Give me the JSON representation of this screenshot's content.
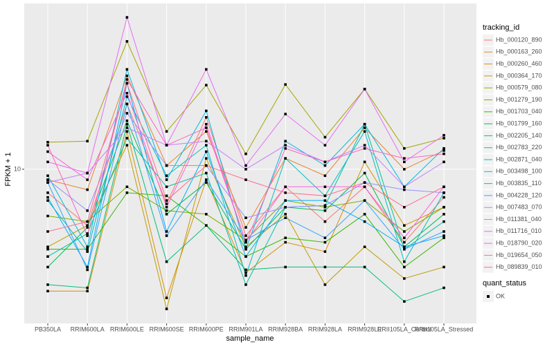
{
  "chart_data": {
    "type": "line",
    "x_label": "sample_name",
    "y_label": "FPKM + 1",
    "categories": [
      "PB350LA",
      "RRIM600LA",
      "RRIM600LE",
      "RRIM600SE",
      "RRIM600PE",
      "RRIM901LA",
      "RRIM928BA",
      "RRIM928LA",
      "RRIM928LE",
      "RRII105LA_Control",
      "RRII105LA_Stressed"
    ],
    "ylim": [
      2.94,
      37.3
    ],
    "yticks": [
      10
    ],
    "log_y": true,
    "grid": true,
    "legend_title": "tracking_id",
    "point_legend": {
      "title": "quant_status",
      "labels": [
        "OK"
      ],
      "color": "#000000"
    },
    "series": [
      {
        "name": "Hb_000120_890",
        "color": "#F8766D",
        "values": [
          8.3,
          6.4,
          16.8,
          7.6,
          15.1,
          5.9,
          8.7,
          6.6,
          8.7,
          5.6,
          8.0
        ]
      },
      {
        "name": "Hb_000163_260",
        "color": "#EA8331",
        "values": [
          9.2,
          8.5,
          21.0,
          10.3,
          13.5,
          6.3,
          10.9,
          9.5,
          13.9,
          10.0,
          11.6
        ]
      },
      {
        "name": "Hb_000260_460",
        "color": "#D89000",
        "values": [
          3.8,
          3.8,
          13.5,
          3.6,
          9.2,
          4.4,
          5.6,
          5.2,
          10.6,
          6.4,
          7.4
        ]
      },
      {
        "name": "Hb_000364_170",
        "color": "#C09B00",
        "values": [
          5.4,
          6.4,
          12.1,
          3.3,
          10.9,
          5.4,
          7.0,
          4.0,
          5.4,
          4.2,
          4.6
        ]
      },
      {
        "name": "Hb_000579_080",
        "color": "#A3A500",
        "values": [
          12.4,
          12.5,
          27.6,
          13.5,
          19.5,
          11.3,
          19.6,
          12.9,
          18.9,
          11.8,
          12.8
        ]
      },
      {
        "name": "Hb_001279_190",
        "color": "#7CAE00",
        "values": [
          6.9,
          6.6,
          8.7,
          7.2,
          7.0,
          5.7,
          7.8,
          7.4,
          7.8,
          6.1,
          7.4
        ]
      },
      {
        "name": "Hb_001703_040",
        "color": "#39B600",
        "values": [
          5.3,
          5.3,
          8.3,
          8.1,
          6.4,
          5.0,
          5.8,
          5.6,
          7.0,
          4.6,
          5.8
        ]
      },
      {
        "name": "Hb_001799_160",
        "color": "#00BB4E",
        "values": [
          4.6,
          6.3,
          14.7,
          7.0,
          9.0,
          5.3,
          7.4,
          7.2,
          9.7,
          5.4,
          7.0
        ]
      },
      {
        "name": "Hb_002205_140",
        "color": "#00BF7D",
        "values": [
          4.0,
          3.9,
          14.3,
          4.8,
          6.4,
          4.5,
          4.6,
          4.6,
          4.6,
          3.5,
          3.9
        ]
      },
      {
        "name": "Hb_002783_220",
        "color": "#00C1A3",
        "values": [
          5.0,
          6.0,
          12.8,
          8.7,
          9.7,
          4.0,
          7.4,
          7.5,
          14.3,
          5.3,
          6.6
        ]
      },
      {
        "name": "Hb_002871_040",
        "color": "#00BFC4",
        "values": [
          7.8,
          5.2,
          17.8,
          9.5,
          12.1,
          4.3,
          10.9,
          8.1,
          13.5,
          4.8,
          8.3
        ]
      },
      {
        "name": "Hb_003498_100",
        "color": "#00BAE0",
        "values": [
          9.5,
          5.4,
          22.1,
          9.2,
          15.9,
          5.3,
          12.5,
          10.3,
          14.3,
          8.7,
          11.8
        ]
      },
      {
        "name": "Hb_003835_110",
        "color": "#00B0F6",
        "values": [
          8.0,
          4.6,
          19.8,
          6.1,
          11.5,
          5.0,
          7.8,
          7.8,
          6.6,
          5.4,
          5.9
        ]
      },
      {
        "name": "Hb_004228_120",
        "color": "#35A2FF",
        "values": [
          9.0,
          4.5,
          16.8,
          5.9,
          9.2,
          5.7,
          6.8,
          5.8,
          7.8,
          5.3,
          6.1
        ]
      },
      {
        "name": "Hb_007483_070",
        "color": "#9590FF",
        "values": [
          9.2,
          7.2,
          15.6,
          10.3,
          10.3,
          6.8,
          7.4,
          7.5,
          9.0,
          8.5,
          8.3
        ]
      },
      {
        "name": "Hb_011381_040",
        "color": "#C77CFF",
        "values": [
          9.0,
          9.7,
          13.9,
          12.1,
          12.5,
          10.0,
          12.1,
          10.6,
          12.1,
          8.7,
          10.6
        ]
      },
      {
        "name": "Hb_011716_010",
        "color": "#E76BF3",
        "values": [
          10.6,
          9.7,
          33.4,
          12.1,
          22.1,
          10.3,
          15.5,
          12.1,
          18.9,
          10.6,
          13.1
        ]
      },
      {
        "name": "Hb_018790_020",
        "color": "#FA62DB",
        "values": [
          11.5,
          9.2,
          18.3,
          7.4,
          14.3,
          5.6,
          8.7,
          8.7,
          8.7,
          5.8,
          8.7
        ]
      },
      {
        "name": "Hb_019654_050",
        "color": "#FF62BC",
        "values": [
          12.1,
          5.9,
          20.4,
          12.1,
          13.9,
          5.6,
          11.8,
          10.6,
          11.8,
          10.9,
          11.3
        ]
      },
      {
        "name": "Hb_089839_010",
        "color": "#FF6C91",
        "values": [
          6.1,
          6.6,
          19.8,
          7.8,
          10.3,
          9.2,
          8.3,
          8.1,
          9.0,
          7.4,
          8.7
        ]
      }
    ]
  }
}
